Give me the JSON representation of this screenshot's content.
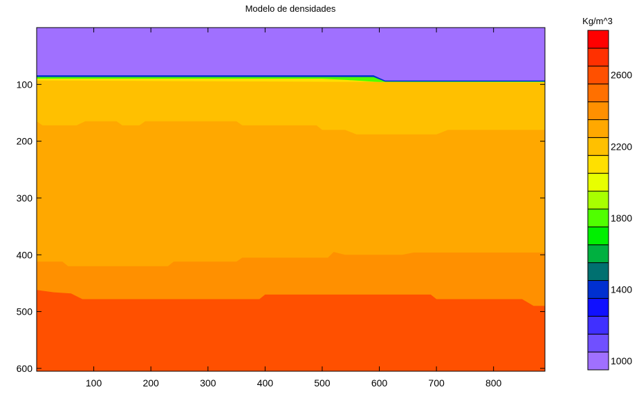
{
  "chart_data": {
    "type": "heatmap",
    "title": "Modelo de densidades",
    "xlabel": "",
    "ylabel": "",
    "xlim": [
      0,
      890
    ],
    "ylim": [
      605,
      0
    ],
    "x_ticks": [
      100,
      200,
      300,
      400,
      500,
      600,
      700,
      800
    ],
    "y_ticks": [
      100,
      200,
      300,
      400,
      500,
      600
    ],
    "colorbar": {
      "title": "Kg/m^3",
      "min": 1000,
      "max": 2800,
      "tick_labels": [
        "1000",
        "1400",
        "1800",
        "2200",
        "2600"
      ],
      "tick_values": [
        1000,
        1400,
        1800,
        2200,
        2600
      ],
      "levels": [
        {
          "value": 1000,
          "color": "#A070FF"
        },
        {
          "value": 1100,
          "color": "#7050FF"
        },
        {
          "value": 1200,
          "color": "#4030FF"
        },
        {
          "value": 1300,
          "color": "#1010FF"
        },
        {
          "value": 1400,
          "color": "#0030D0"
        },
        {
          "value": 1500,
          "color": "#007070"
        },
        {
          "value": 1600,
          "color": "#00B040"
        },
        {
          "value": 1700,
          "color": "#00F000"
        },
        {
          "value": 1800,
          "color": "#50FF00"
        },
        {
          "value": 1900,
          "color": "#A8FF00"
        },
        {
          "value": 2000,
          "color": "#E8FF00"
        },
        {
          "value": 2100,
          "color": "#FFE000"
        },
        {
          "value": 2200,
          "color": "#FFC000"
        },
        {
          "value": 2300,
          "color": "#FFA800"
        },
        {
          "value": 2400,
          "color": "#FF9000"
        },
        {
          "value": 2500,
          "color": "#FF7000"
        },
        {
          "value": 2600,
          "color": "#FF5000"
        },
        {
          "value": 2700,
          "color": "#FF3000"
        },
        {
          "value": 2800,
          "color": "#FF0000"
        }
      ]
    },
    "layers": [
      {
        "value": 1000,
        "top": [
          [
            0,
            0
          ],
          [
            890,
            0
          ]
        ]
      },
      {
        "value": 1400,
        "top": [
          [
            0,
            84
          ],
          [
            590,
            84
          ],
          [
            610,
            93
          ],
          [
            890,
            93
          ]
        ]
      },
      {
        "value": 1800,
        "top": [
          [
            0,
            87
          ],
          [
            590,
            87
          ],
          [
            610,
            95
          ],
          [
            890,
            95
          ]
        ]
      },
      {
        "value": 2100,
        "top": [
          [
            0,
            90
          ],
          [
            500,
            90
          ],
          [
            540,
            92
          ],
          [
            600,
            96
          ],
          [
            890,
            96
          ]
        ]
      },
      {
        "value": 2200,
        "top": [
          [
            0,
            93
          ],
          [
            890,
            97
          ]
        ]
      },
      {
        "value": 2300,
        "top": [
          [
            0,
            165
          ],
          [
            10,
            172
          ],
          [
            70,
            172
          ],
          [
            85,
            165
          ],
          [
            140,
            165
          ],
          [
            150,
            172
          ],
          [
            180,
            172
          ],
          [
            190,
            165
          ],
          [
            350,
            165
          ],
          [
            360,
            172
          ],
          [
            490,
            172
          ],
          [
            500,
            180
          ],
          [
            540,
            180
          ],
          [
            560,
            188
          ],
          [
            700,
            188
          ],
          [
            720,
            180
          ],
          [
            890,
            180
          ]
        ]
      },
      {
        "value": 2400,
        "top": [
          [
            0,
            412
          ],
          [
            45,
            412
          ],
          [
            55,
            420
          ],
          [
            230,
            420
          ],
          [
            240,
            412
          ],
          [
            350,
            412
          ],
          [
            360,
            405
          ],
          [
            510,
            405
          ],
          [
            520,
            395
          ],
          [
            540,
            400
          ],
          [
            580,
            400
          ],
          [
            640,
            400
          ],
          [
            660,
            396
          ],
          [
            890,
            396
          ]
        ]
      },
      {
        "value": 2600,
        "top": [
          [
            0,
            462
          ],
          [
            30,
            466
          ],
          [
            60,
            468
          ],
          [
            80,
            478
          ],
          [
            390,
            478
          ],
          [
            400,
            470
          ],
          [
            690,
            470
          ],
          [
            700,
            478
          ],
          [
            850,
            478
          ],
          [
            870,
            490
          ],
          [
            890,
            490
          ]
        ]
      }
    ]
  }
}
